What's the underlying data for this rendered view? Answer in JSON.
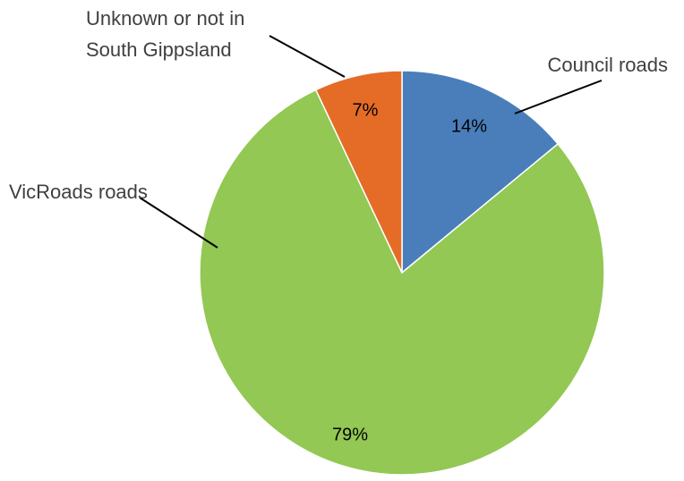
{
  "chart_data": {
    "type": "pie",
    "title": "",
    "start_angle_deg": 0,
    "direction": "clockwise",
    "slices": [
      {
        "label": "Council roads",
        "value": 14,
        "display": "14%",
        "color": "#4A7EBB"
      },
      {
        "label": "VicRoads roads",
        "value": 79,
        "display": "79%",
        "color": "#92C853"
      },
      {
        "label": "Unknown or not in South Gippsland",
        "label_lines": [
          "Unknown or not in",
          "South Gippsland"
        ],
        "value": 7,
        "display": "7%",
        "color": "#E46C27"
      }
    ],
    "legend": "none",
    "labels": "outside-with-leader-lines"
  }
}
